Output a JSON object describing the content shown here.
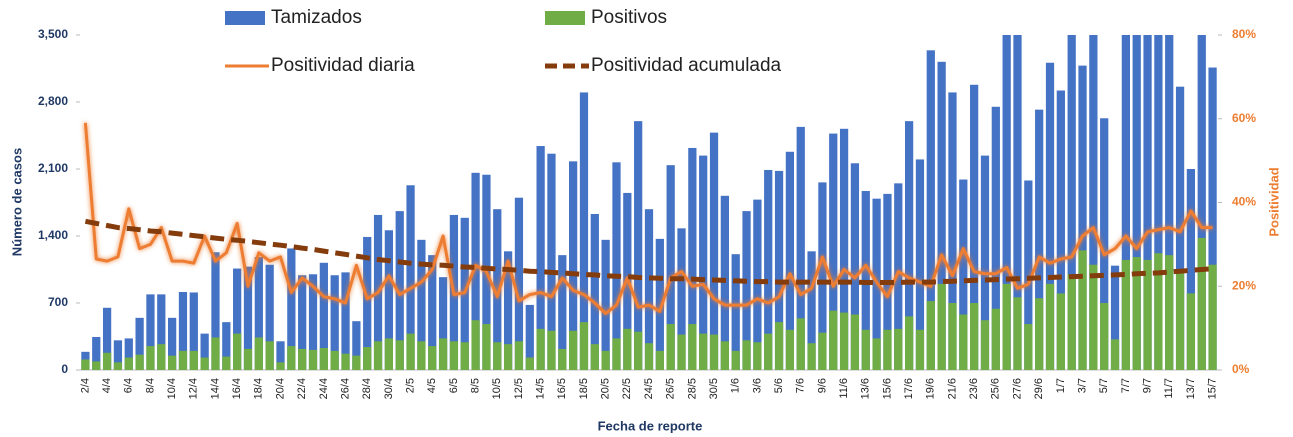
{
  "chart_data": {
    "type": "bar",
    "x_label": "Fecha de reporte",
    "y_label": "Número de casos",
    "y2_label": "Positividad",
    "categories": [
      "2/4",
      null,
      "4/4",
      null,
      "6/4",
      null,
      "8/4",
      null,
      "10/4",
      null,
      "12/4",
      null,
      "14/4",
      null,
      "16/4",
      null,
      "18/4",
      null,
      "20/4",
      null,
      "22/4",
      null,
      "24/4",
      null,
      "26/4",
      null,
      "28/4",
      null,
      "30/4",
      null,
      "2/5",
      null,
      "4/5",
      null,
      "6/5",
      null,
      "8/5",
      null,
      "10/5",
      null,
      "12/5",
      null,
      "14/5",
      null,
      "16/5",
      null,
      "18/5",
      null,
      "20/5",
      null,
      "22/5",
      null,
      "24/5",
      null,
      "26/5",
      null,
      "28/5",
      null,
      "30/5",
      null,
      "1/6",
      null,
      "3/6",
      null,
      "5/6",
      null,
      "7/6",
      null,
      "9/6",
      null,
      "11/6",
      null,
      "13/6",
      null,
      "15/6",
      null,
      "17/6",
      null,
      "19/6",
      null,
      "21/6",
      null,
      "23/6",
      null,
      "25/6",
      null,
      "27/6",
      null,
      "29/6",
      null,
      "1/7",
      null,
      "3/7",
      null,
      "5/7",
      null,
      "7/7",
      null,
      "9/7",
      null,
      "11/7",
      null,
      "13/7",
      null,
      "15/7"
    ],
    "series": [
      {
        "name": "Tamizados",
        "type": "bar",
        "color": "#4472c4",
        "values": [
          190,
          345,
          650,
          310,
          330,
          545,
          790,
          790,
          545,
          815,
          810,
          380,
          1230,
          500,
          1060,
          1080,
          1180,
          1100,
          300,
          1270,
          990,
          1000,
          1120,
          990,
          1020,
          510,
          1390,
          1620,
          1460,
          1660,
          1930,
          1360,
          1200,
          970,
          1620,
          1590,
          2060,
          2040,
          1680,
          1240,
          1800,
          680,
          2340,
          2260,
          1200,
          2180,
          2900,
          1630,
          1360,
          2170,
          1850,
          2600,
          1680,
          1370,
          2140,
          1480,
          2320,
          2240,
          2480,
          1820,
          1210,
          1660,
          1780,
          2090,
          2080,
          2280,
          2540,
          1240,
          1960,
          2470,
          2520,
          2160,
          1870,
          1790,
          1840,
          1950,
          2600,
          2200,
          3340,
          3220,
          2900,
          1990,
          2980,
          2240,
          2750,
          3500,
          3500,
          1980,
          2720,
          3210,
          2920,
          3500,
          3180,
          3500,
          2630,
          1090,
          3500,
          3500,
          3500,
          3500,
          3500,
          2960,
          2100,
          3500,
          3160
        ]
      },
      {
        "name": "Positivos",
        "type": "bar",
        "color": "#70ad47",
        "values": [
          110,
          90,
          180,
          80,
          130,
          160,
          250,
          270,
          150,
          200,
          200,
          130,
          340,
          140,
          380,
          220,
          340,
          300,
          80,
          250,
          220,
          210,
          230,
          200,
          170,
          150,
          240,
          300,
          330,
          310,
          380,
          300,
          250,
          330,
          300,
          290,
          520,
          480,
          290,
          270,
          300,
          130,
          430,
          410,
          220,
          410,
          500,
          270,
          200,
          330,
          430,
          400,
          280,
          200,
          480,
          370,
          480,
          380,
          370,
          300,
          200,
          310,
          290,
          380,
          500,
          420,
          540,
          280,
          390,
          620,
          600,
          580,
          420,
          330,
          420,
          430,
          560,
          420,
          720,
          900,
          700,
          580,
          700,
          520,
          640,
          900,
          760,
          480,
          750,
          900,
          800,
          1000,
          1250,
          1100,
          700,
          320,
          1150,
          1180,
          1150,
          1220,
          1200,
          1050,
          800,
          1380,
          1100
        ]
      },
      {
        "name": "Positividad diaria",
        "type": "line",
        "axis": "y2",
        "color": "#ed7d31",
        "values": [
          59,
          26.5,
          26,
          27,
          38.5,
          29,
          30,
          34,
          26,
          26,
          25.5,
          32,
          26,
          28,
          35,
          20,
          28,
          26,
          27,
          18.5,
          22,
          20,
          17.5,
          17,
          16,
          25,
          17,
          18.5,
          22.5,
          18,
          19.5,
          21,
          24,
          32,
          18,
          18.5,
          25,
          23.5,
          17.5,
          26,
          16.5,
          18,
          18.5,
          17.5,
          22,
          19,
          18,
          16,
          13.5,
          15.5,
          22,
          15,
          15.5,
          14,
          22,
          23.5,
          20,
          20.5,
          17,
          15.5,
          15.5,
          15.5,
          17,
          16,
          17.5,
          23,
          18,
          19.5,
          27,
          20,
          24,
          22,
          25,
          21,
          17.5,
          23.5,
          22,
          21,
          20,
          27.5,
          22.5,
          29,
          23.5,
          23,
          23,
          24.5,
          19.5,
          20.5,
          27,
          25.5,
          26.5,
          27,
          32,
          34,
          27.5,
          29,
          32,
          29,
          33,
          33.5,
          34,
          33,
          38,
          34,
          34
        ]
      },
      {
        "name": "Positividad acumulada",
        "type": "line",
        "dashed": true,
        "axis": "y2",
        "color": "#843c0c",
        "values": [
          35.5,
          35,
          34.5,
          34,
          33.8,
          33.5,
          33.2,
          33,
          32.7,
          32.4,
          32.1,
          31.8,
          31.5,
          31.2,
          31,
          30.7,
          30.4,
          30.1,
          29.8,
          29.5,
          29.1,
          28.8,
          28.4,
          28,
          27.6,
          27.2,
          26.8,
          26.4,
          26.1,
          25.8,
          25.5,
          25.3,
          25.1,
          25,
          24.8,
          24.6,
          24.5,
          24.3,
          24.1,
          24,
          23.8,
          23.6,
          23.5,
          23.3,
          23.2,
          23,
          22.8,
          22.7,
          22.5,
          22.4,
          22.3,
          22.1,
          22,
          21.9,
          21.8,
          21.8,
          21.7,
          21.6,
          21.5,
          21.4,
          21.3,
          21.2,
          21.1,
          21.1,
          21,
          21,
          21,
          21,
          21,
          21,
          21,
          21,
          20.9,
          20.9,
          20.9,
          20.9,
          21,
          21,
          21,
          21.1,
          21.2,
          21.3,
          21.4,
          21.5,
          21.6,
          21.7,
          21.8,
          21.9,
          22,
          22.1,
          22.2,
          22.3,
          22.4,
          22.5,
          22.6,
          22.7,
          22.8,
          23,
          23.1,
          23.2,
          23.4,
          23.6,
          23.8,
          24,
          24.2
        ]
      }
    ],
    "ylim": [
      0,
      3500
    ],
    "yticks": [
      0,
      700,
      {
        "value": 1400,
        "label": "1,400"
      },
      {
        "value": 2100,
        "label": "2,100"
      },
      {
        "value": 2800,
        "label": "2,800"
      },
      {
        "value": 3500,
        "label": "3,500"
      }
    ],
    "y2lim": [
      0,
      80
    ],
    "y2ticks": [
      {
        "value": 0,
        "label": "0%"
      },
      {
        "value": 20,
        "label": "20%"
      },
      {
        "value": 40,
        "label": "40%"
      },
      {
        "value": 60,
        "label": "60%"
      },
      {
        "value": 80,
        "label": "80%"
      }
    ],
    "y_color": "#1f3864",
    "y2_color": "#ed7d31"
  }
}
